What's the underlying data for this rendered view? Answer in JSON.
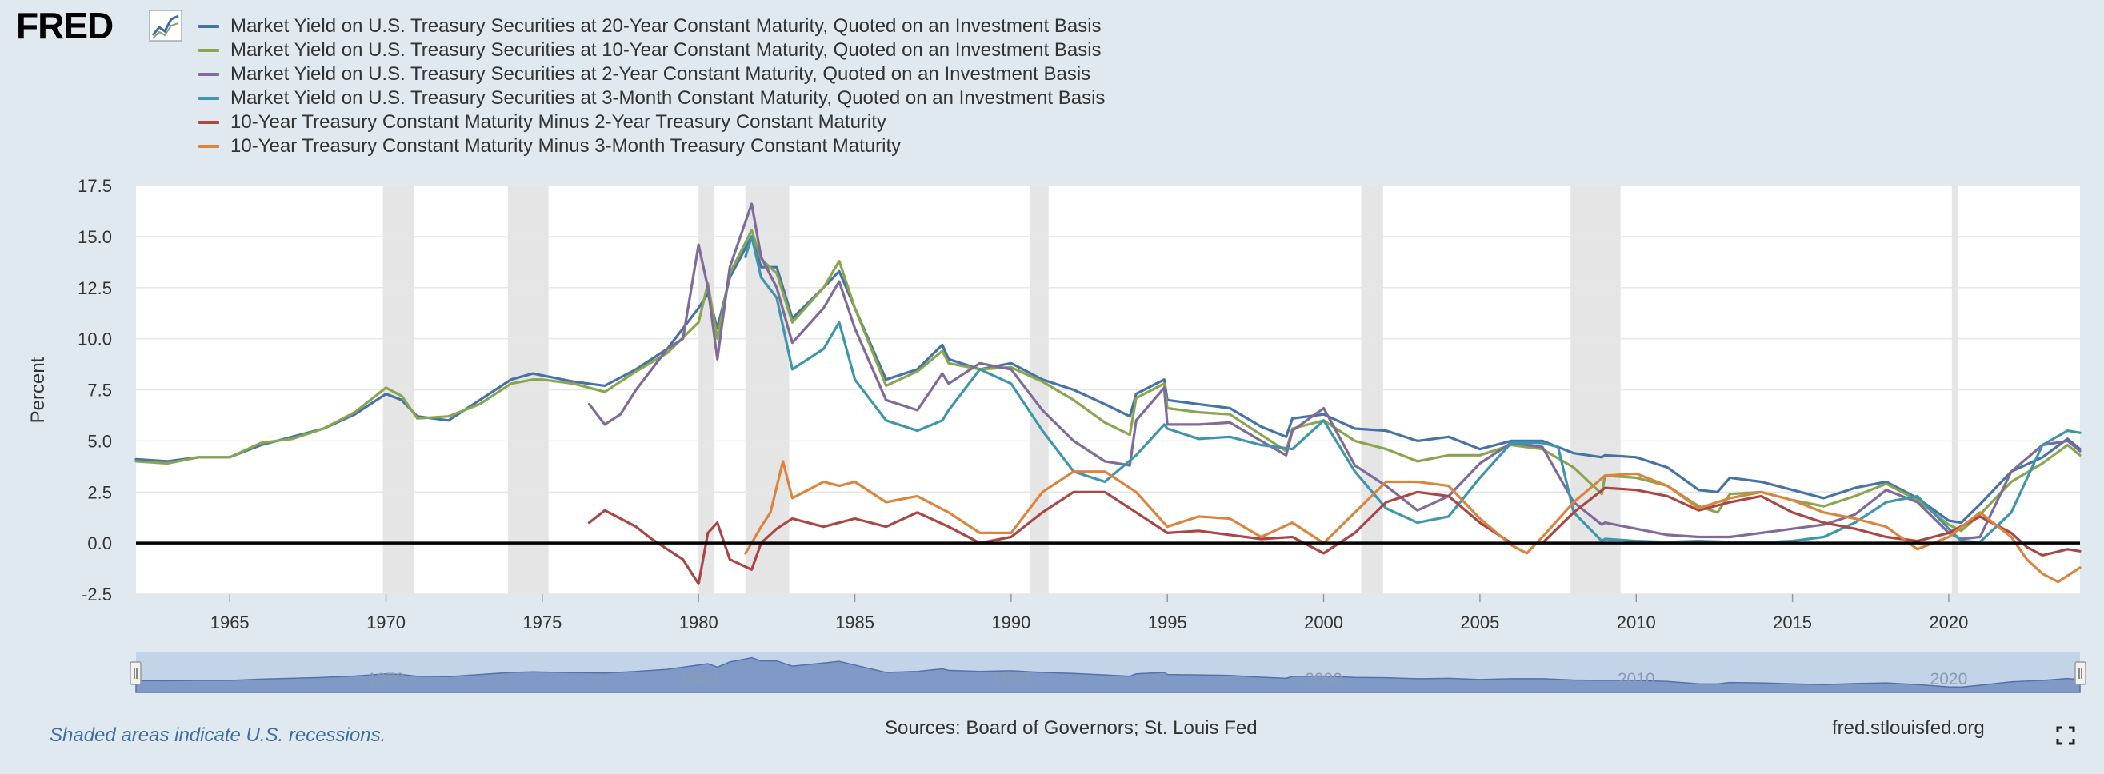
{
  "logo": {
    "text": "FRED",
    "icon": "chart-line-icon"
  },
  "legend": [
    {
      "label": "Market Yield on U.S. Treasury Securities at 20-Year Constant Maturity, Quoted on an Investment Basis",
      "color": "#4572a7"
    },
    {
      "label": "Market Yield on U.S. Treasury Securities at 10-Year Constant Maturity, Quoted on an Investment Basis",
      "color": "#89a54e"
    },
    {
      "label": "Market Yield on U.S. Treasury Securities at 2-Year Constant Maturity, Quoted on an Investment Basis",
      "color": "#80699b"
    },
    {
      "label": "Market Yield on U.S. Treasury Securities at 3-Month Constant Maturity, Quoted on an Investment Basis",
      "color": "#3d96ae"
    },
    {
      "label": "10-Year Treasury Constant Maturity Minus 2-Year Treasury Constant Maturity",
      "color": "#aa4643"
    },
    {
      "label": "10-Year Treasury Constant Maturity Minus 3-Month Treasury Constant Maturity",
      "color": "#db843d"
    }
  ],
  "chart_data": {
    "type": "line",
    "ylabel": "Percent",
    "ylim": [
      -2.5,
      17.5
    ],
    "yticks": [
      "17.5",
      "15.0",
      "12.5",
      "10.0",
      "7.5",
      "5.0",
      "2.5",
      "0.0",
      "-2.5"
    ],
    "xlim": [
      1962.0,
      2024.2
    ],
    "xticks": [
      "1965",
      "1970",
      "1975",
      "1980",
      "1985",
      "1990",
      "1995",
      "2000",
      "2005",
      "2010",
      "2015",
      "2020"
    ],
    "recessions": [
      [
        1969.9,
        1970.9
      ],
      [
        1973.9,
        1975.2
      ],
      [
        1980.0,
        1980.5
      ],
      [
        1981.5,
        1982.9
      ],
      [
        1990.6,
        1991.2
      ],
      [
        2001.2,
        2001.9
      ],
      [
        2007.9,
        2009.5
      ],
      [
        2020.1,
        2020.3
      ]
    ],
    "zero_line": 0,
    "grid": true,
    "series": [
      {
        "name": "Market Yield on U.S. Treasury Securities at 20-Year Constant Maturity, Quoted on an Investment Basis",
        "x": [
          1962,
          1963,
          1964,
          1965,
          1966,
          1967,
          1968,
          1969,
          1970,
          1970.5,
          1971,
          1972,
          1973,
          1974,
          1974.7,
          1975,
          1976,
          1977,
          1978,
          1979,
          1980,
          1980.3,
          1980.6,
          1981,
          1981.7,
          1982,
          1982.5,
          1983,
          1984,
          1984.5,
          1985,
          1986,
          1987,
          1987.8,
          1988,
          1989,
          1990,
          1991,
          1992,
          1993,
          1993.8,
          1994,
          1994.9,
          1995,
          1996,
          1997,
          1998,
          1998.8,
          1999,
          2000,
          2001,
          2002,
          2003,
          2004,
          2005,
          2006,
          2007,
          2008,
          2008.9,
          2009,
          2010,
          2011,
          2012,
          2012.6,
          2013,
          2014,
          2015,
          2016,
          2017,
          2018,
          2019,
          2020,
          2020.4,
          2021,
          2022,
          2023,
          2023.8,
          2024.2
        ],
        "values": [
          4.1,
          4.0,
          4.2,
          4.2,
          4.8,
          5.2,
          5.6,
          6.3,
          7.3,
          7.0,
          6.2,
          6.0,
          7.0,
          8.0,
          8.3,
          8.2,
          7.9,
          7.7,
          8.5,
          9.5,
          11.5,
          12.2,
          10.5,
          13.0,
          15.0,
          13.5,
          13.5,
          11.0,
          12.5,
          13.3,
          11.5,
          8.0,
          8.5,
          9.7,
          9.0,
          8.5,
          8.8,
          8.0,
          7.5,
          6.8,
          6.2,
          7.3,
          8.0,
          7.0,
          6.8,
          6.6,
          5.7,
          5.2,
          6.1,
          6.3,
          5.6,
          5.5,
          5.0,
          5.2,
          4.6,
          5.0,
          5.0,
          4.4,
          4.2,
          4.3,
          4.2,
          3.7,
          2.6,
          2.5,
          3.2,
          3.0,
          2.6,
          2.2,
          2.7,
          3.0,
          2.2,
          1.1,
          1.0,
          1.9,
          3.5,
          4.2,
          5.1,
          4.6
        ]
      },
      {
        "name": "Market Yield on U.S. Treasury Securities at 10-Year Constant Maturity, Quoted on an Investment Basis",
        "x": [
          1962,
          1963,
          1964,
          1965,
          1966,
          1967,
          1968,
          1969,
          1970,
          1970.5,
          1971,
          1972,
          1973,
          1974,
          1974.7,
          1975,
          1976,
          1977,
          1978,
          1979,
          1980,
          1980.3,
          1980.6,
          1981,
          1981.7,
          1982,
          1982.5,
          1983,
          1984,
          1984.5,
          1985,
          1986,
          1987,
          1987.8,
          1988,
          1989,
          1990,
          1991,
          1992,
          1993,
          1993.8,
          1994,
          1994.9,
          1995,
          1996,
          1997,
          1998,
          1998.8,
          1999,
          2000,
          2001,
          2002,
          2003,
          2004,
          2005,
          2006,
          2007,
          2008,
          2008.9,
          2009,
          2010,
          2011,
          2012,
          2012.6,
          2013,
          2014,
          2015,
          2016,
          2017,
          2018,
          2019,
          2020,
          2020.4,
          2021,
          2022,
          2023,
          2023.8,
          2024.2
        ],
        "values": [
          4.0,
          3.9,
          4.2,
          4.2,
          4.9,
          5.1,
          5.6,
          6.4,
          7.6,
          7.2,
          6.1,
          6.2,
          6.8,
          7.8,
          8.0,
          8.0,
          7.8,
          7.4,
          8.4,
          9.3,
          10.8,
          12.7,
          10.0,
          13.2,
          15.3,
          13.9,
          13.2,
          10.8,
          12.5,
          13.8,
          11.5,
          7.7,
          8.4,
          9.4,
          8.8,
          8.5,
          8.6,
          7.9,
          7.0,
          5.9,
          5.3,
          7.1,
          7.8,
          6.6,
          6.4,
          6.3,
          5.3,
          4.5,
          5.6,
          6.0,
          5.0,
          4.6,
          4.0,
          4.3,
          4.3,
          4.8,
          4.6,
          3.7,
          2.4,
          3.3,
          3.2,
          2.8,
          1.8,
          1.5,
          2.4,
          2.5,
          2.1,
          1.8,
          2.3,
          2.9,
          2.1,
          0.9,
          0.6,
          1.4,
          3.0,
          3.9,
          4.8,
          4.3
        ]
      },
      {
        "name": "Market Yield on U.S. Treasury Securities at 2-Year Constant Maturity, Quoted on an Investment Basis",
        "x": [
          1976.5,
          1977,
          1977.5,
          1978,
          1978.5,
          1979,
          1979.5,
          1980,
          1980.3,
          1980.6,
          1981,
          1981.7,
          1982,
          1982.5,
          1983,
          1984,
          1984.5,
          1985,
          1986,
          1987,
          1987.8,
          1988,
          1989,
          1990,
          1991,
          1992,
          1993,
          1993.8,
          1994,
          1994.9,
          1995,
          1996,
          1997,
          1998,
          1998.8,
          1999,
          2000,
          2001,
          2002,
          2003,
          2004,
          2005,
          2006,
          2007,
          2008,
          2008.9,
          2009,
          2010,
          2011,
          2012,
          2013,
          2014,
          2015,
          2016,
          2017,
          2018,
          2019,
          2020,
          2020.4,
          2021,
          2022,
          2023,
          2023.8,
          2024.2
        ],
        "values": [
          6.8,
          5.8,
          6.3,
          7.5,
          8.5,
          9.5,
          10.0,
          14.6,
          12.5,
          9.0,
          13.5,
          16.6,
          14.0,
          12.5,
          9.8,
          11.5,
          12.8,
          10.5,
          7.0,
          6.5,
          8.3,
          7.8,
          8.8,
          8.5,
          6.5,
          5.0,
          4.0,
          3.8,
          6.0,
          7.6,
          5.8,
          5.8,
          5.9,
          5.0,
          4.3,
          5.5,
          6.6,
          3.8,
          2.8,
          1.6,
          2.3,
          3.9,
          4.9,
          4.7,
          2.0,
          0.9,
          1.0,
          0.7,
          0.4,
          0.3,
          0.3,
          0.5,
          0.7,
          0.9,
          1.4,
          2.6,
          2.0,
          0.5,
          0.2,
          0.3,
          3.5,
          4.8,
          5.0,
          4.5
        ]
      },
      {
        "name": "Market Yield on U.S. Treasury Securities at 3-Month Constant Maturity, Quoted on an Investment Basis",
        "x": [
          1981.5,
          1981.7,
          1982,
          1982.5,
          1983,
          1984,
          1984.5,
          1985,
          1986,
          1987,
          1987.8,
          1988,
          1989,
          1990,
          1991,
          1992,
          1993,
          1994,
          1994.9,
          1995,
          1996,
          1997,
          1998,
          1999,
          2000,
          2001,
          2002,
          2003,
          2004,
          2005,
          2006,
          2007,
          2007.5,
          2008,
          2008.9,
          2009,
          2010,
          2011,
          2012,
          2013,
          2014,
          2015,
          2016,
          2017,
          2018,
          2019,
          2020,
          2020.4,
          2021,
          2022,
          2023,
          2023.8,
          2024.2
        ],
        "values": [
          14.0,
          15.0,
          13.0,
          12.0,
          8.5,
          9.5,
          10.8,
          8.0,
          6.0,
          5.5,
          6.0,
          6.5,
          8.5,
          7.8,
          5.5,
          3.5,
          3.0,
          4.3,
          5.8,
          5.6,
          5.1,
          5.2,
          4.8,
          4.6,
          6.0,
          3.5,
          1.7,
          1.0,
          1.3,
          3.2,
          4.9,
          4.9,
          4.7,
          1.5,
          0.1,
          0.2,
          0.1,
          0.05,
          0.1,
          0.05,
          0.03,
          0.1,
          0.3,
          1.0,
          2.0,
          2.3,
          0.7,
          0.1,
          0.05,
          1.5,
          4.8,
          5.5,
          5.4
        ]
      },
      {
        "name": "10-Year Treasury Constant Maturity Minus 2-Year Treasury Constant Maturity",
        "x": [
          1976.5,
          1977,
          1978,
          1978.5,
          1979,
          1979.5,
          1980,
          1980.3,
          1980.6,
          1981,
          1981.7,
          1982,
          1982.5,
          1983,
          1984,
          1985,
          1986,
          1987,
          1988,
          1989,
          1990,
          1991,
          1992,
          1993,
          1994,
          1995,
          1996,
          1997,
          1998,
          1999,
          2000,
          2001,
          2002,
          2003,
          2004,
          2005,
          2006,
          2007,
          2008,
          2009,
          2010,
          2011,
          2012,
          2013,
          2014,
          2015,
          2016,
          2017,
          2018,
          2019,
          2020,
          2021,
          2022,
          2022.5,
          2023,
          2023.8,
          2024.2
        ],
        "values": [
          1.0,
          1.6,
          0.8,
          0.2,
          -0.3,
          -0.8,
          -2.0,
          0.5,
          1.0,
          -0.8,
          -1.3,
          0.0,
          0.7,
          1.2,
          0.8,
          1.2,
          0.8,
          1.5,
          0.8,
          0.0,
          0.3,
          1.5,
          2.5,
          2.5,
          1.5,
          0.5,
          0.6,
          0.4,
          0.2,
          0.3,
          -0.5,
          0.5,
          2.0,
          2.5,
          2.3,
          1.0,
          0.0,
          0.0,
          1.5,
          2.7,
          2.6,
          2.3,
          1.6,
          2.0,
          2.3,
          1.5,
          1.0,
          0.7,
          0.3,
          0.1,
          0.5,
          1.3,
          0.5,
          -0.2,
          -0.6,
          -0.3,
          -0.4
        ]
      },
      {
        "name": "10-Year Treasury Constant Maturity Minus 3-Month Treasury Constant Maturity",
        "x": [
          1981.5,
          1981.7,
          1982,
          1982.3,
          1982.7,
          1983,
          1984,
          1984.5,
          1985,
          1986,
          1987,
          1988,
          1989,
          1990,
          1991,
          1992,
          1993,
          1994,
          1995,
          1996,
          1997,
          1998,
          1999,
          2000,
          2001,
          2002,
          2003,
          2004,
          2005,
          2006,
          2006.5,
          2007,
          2008,
          2009,
          2010,
          2011,
          2012,
          2013,
          2014,
          2015,
          2016,
          2017,
          2018,
          2019,
          2020,
          2021,
          2022,
          2022.5,
          2023,
          2023.5,
          2023.8,
          2024.2
        ],
        "values": [
          -0.5,
          0.0,
          0.8,
          1.5,
          4.0,
          2.2,
          3.0,
          2.8,
          3.0,
          2.0,
          2.3,
          1.5,
          0.5,
          0.5,
          2.5,
          3.5,
          3.5,
          2.5,
          0.8,
          1.3,
          1.2,
          0.3,
          1.0,
          0.0,
          1.5,
          3.0,
          3.0,
          2.8,
          1.2,
          -0.1,
          -0.5,
          0.3,
          2.0,
          3.3,
          3.4,
          2.8,
          1.7,
          2.2,
          2.5,
          2.1,
          1.5,
          1.2,
          0.8,
          -0.3,
          0.3,
          1.5,
          0.3,
          -0.8,
          -1.5,
          -1.9,
          -1.6,
          -1.2
        ]
      }
    ]
  },
  "navigator": {
    "labels": [
      "1970",
      "1980",
      "1990",
      "2000",
      "2010",
      "2020"
    ]
  },
  "footer": {
    "note": "Shaded areas indicate U.S. recessions.",
    "source": "Sources: Board of Governors; St. Louis Fed",
    "url": "fred.stlouisfed.org",
    "fullscreen_icon": "fullscreen-icon"
  }
}
